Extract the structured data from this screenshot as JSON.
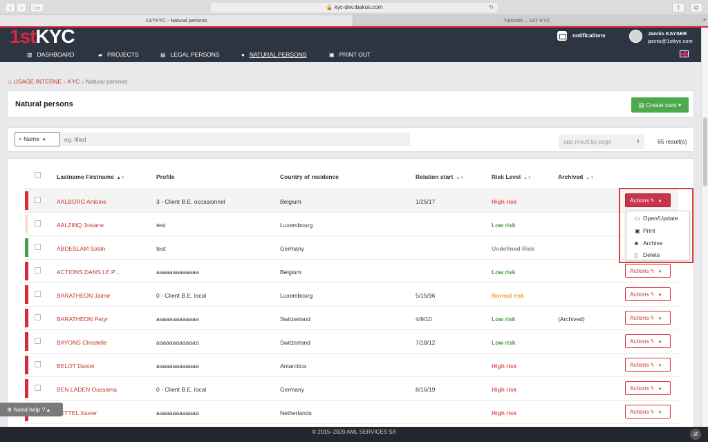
{
  "browser": {
    "url": "kyc-dev.ibakus.com",
    "tabs": [
      {
        "label": "1STKYC - Natural persons",
        "active": true
      },
      {
        "label": "Tutorials – 1ST KYC",
        "active": false
      }
    ]
  },
  "header": {
    "logo_part1": "1st",
    "logo_part2": "KYC",
    "notifications_label": "notifications",
    "user_name": "Jannis KAYSER",
    "user_email": "jannis@1stkyc.com",
    "nav": [
      {
        "label": "DASHBOARD",
        "icon": "chart-icon"
      },
      {
        "label": "PROJECTS",
        "icon": "folder-icon"
      },
      {
        "label": "LEGAL PERSONS",
        "icon": "document-icon"
      },
      {
        "label": "NATURAL PERSONS",
        "icon": "user-icon",
        "active": true
      },
      {
        "label": "PRINT OUT",
        "icon": "print-icon"
      }
    ]
  },
  "breadcrumb": {
    "items": [
      "USAGE INTERNE",
      "KYC",
      "Natural persons"
    ]
  },
  "page": {
    "title": "Natural persons",
    "create_button": "Create card"
  },
  "filter": {
    "field_select": "Name",
    "search_placeholder": "eg. Illiad",
    "per_page": "app.result.by.page",
    "result_count": "65 result(s)"
  },
  "table": {
    "columns": [
      "Lastname Firstname",
      "Profile",
      "Country of residence",
      "Relation start",
      "Risk Level",
      "Archived"
    ],
    "actions_label": "Actions",
    "rows": [
      {
        "name": "AALBORG Antoine",
        "profile": "3 - Client B.E. occasionnel",
        "country": "Belgium",
        "start": "1/25/17",
        "risk": "High risk",
        "archived": "",
        "bar": "#d9293c"
      },
      {
        "name": "AALZINQ Josiane",
        "profile": "test",
        "country": "Luxembourg",
        "start": "",
        "risk": "Low risk",
        "archived": "",
        "bar": "#fbe3d2"
      },
      {
        "name": "ABDESLAM Salah",
        "profile": "test",
        "country": "Germany",
        "start": "",
        "risk": "Undefined Risk",
        "archived": "",
        "bar": "#3fa34d"
      },
      {
        "name": "ACTIONS DANS LE P...",
        "profile": "aaaaaaaaaaaaa",
        "country": "Belgium",
        "start": "",
        "risk": "Low risk",
        "archived": "",
        "bar": "#d9293c"
      },
      {
        "name": "BARATHEON Jaime",
        "profile": "0 - Client B.E. local",
        "country": "Luxembourg",
        "start": "5/15/96",
        "risk": "Normal risk",
        "archived": "",
        "bar": "#d9293c"
      },
      {
        "name": "BARATHEON Petyr",
        "profile": "aaaaaaaaaaaaa",
        "country": "Switzerland",
        "start": "4/9/10",
        "risk": "Low risk",
        "archived": "(Archived)",
        "bar": "#d9293c"
      },
      {
        "name": "BAYONS Christelle",
        "profile": "aaaaaaaaaaaaa",
        "country": "Switzerland",
        "start": "7/18/12",
        "risk": "Low risk",
        "archived": "",
        "bar": "#d9293c"
      },
      {
        "name": "BELOT Daniel",
        "profile": "aaaaaaaaaaaaa",
        "country": "Antarctica",
        "start": "",
        "risk": "High risk",
        "archived": "",
        "bar": "#d9293c"
      },
      {
        "name": "BEN LADEN Oussama",
        "profile": "0 - Client B.E. local",
        "country": "Germany",
        "start": "8/16/19",
        "risk": "High risk",
        "archived": "",
        "bar": "#d9293c"
      },
      {
        "name": "BETTEL Xavier",
        "profile": "aaaaaaaaaaaaa",
        "country": "Netherlands",
        "start": "",
        "risk": "High risk",
        "archived": "",
        "bar": "#d9293c"
      }
    ]
  },
  "dropdown": {
    "items": [
      {
        "label": "Open/Update",
        "icon": "card-icon"
      },
      {
        "label": "Print",
        "icon": "print-icon"
      },
      {
        "label": "Archive",
        "icon": "archive-icon"
      },
      {
        "label": "Delete",
        "icon": "trash-icon"
      }
    ]
  },
  "risk_colors": {
    "High risk": "#e05a5a",
    "Low risk": "#3e9b3e",
    "Normal risk": "#f0a030",
    "Undefined Risk": "#888888"
  },
  "help_label": "Need help ?",
  "footer": "© 2015–2020 AML SERVICES SA"
}
